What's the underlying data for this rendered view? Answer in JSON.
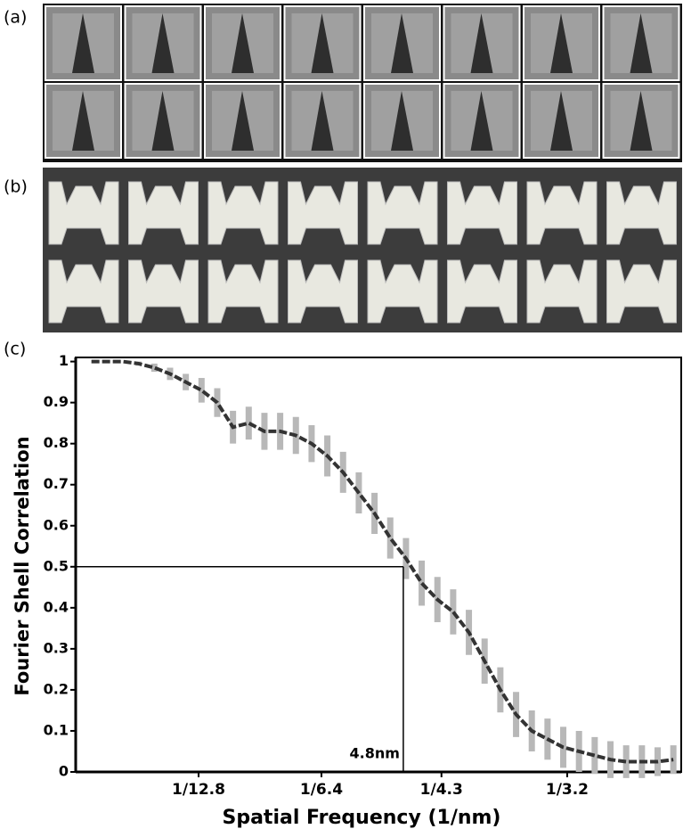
{
  "panel_labels": [
    "(a)",
    "(b)",
    "(c)"
  ],
  "chart_data": {
    "type": "errorline",
    "x_label": "Spatial Frequency (1/nm)",
    "y_label": "Fourier Shell Correlation",
    "x": [
      0.01,
      0.02,
      0.03,
      0.04,
      0.05,
      0.06,
      0.07,
      0.08,
      0.09,
      0.1,
      0.11,
      0.12,
      0.13,
      0.14,
      0.15,
      0.16,
      0.17,
      0.18,
      0.19,
      0.2,
      0.21,
      0.22,
      0.23,
      0.24,
      0.25,
      0.26,
      0.27,
      0.28,
      0.29,
      0.3,
      0.31,
      0.32,
      0.33,
      0.34,
      0.35,
      0.36,
      0.37,
      0.38
    ],
    "series": [
      {
        "color": "#333333",
        "error_color": "#b8b8b8",
        "values": [
          1.0,
          1.0,
          1.0,
          0.995,
          0.985,
          0.97,
          0.95,
          0.93,
          0.9,
          0.84,
          0.85,
          0.83,
          0.83,
          0.82,
          0.8,
          0.77,
          0.73,
          0.68,
          0.63,
          0.57,
          0.52,
          0.46,
          0.42,
          0.39,
          0.34,
          0.27,
          0.2,
          0.14,
          0.1,
          0.08,
          0.06,
          0.05,
          0.04,
          0.03,
          0.025,
          0.025,
          0.025,
          0.03
        ],
        "errors": [
          0,
          0,
          0,
          0.005,
          0.01,
          0.015,
          0.02,
          0.03,
          0.035,
          0.04,
          0.04,
          0.045,
          0.045,
          0.045,
          0.045,
          0.05,
          0.05,
          0.05,
          0.05,
          0.05,
          0.05,
          0.055,
          0.055,
          0.055,
          0.055,
          0.055,
          0.055,
          0.055,
          0.05,
          0.05,
          0.05,
          0.05,
          0.045,
          0.045,
          0.04,
          0.04,
          0.035,
          0.035
        ]
      }
    ],
    "threshold": {
      "x": 0.2083,
      "y": 0.5,
      "label": "4.8nm"
    },
    "xlim": [
      0,
      0.385
    ],
    "ylim": [
      0,
      1.01
    ],
    "xticks": [
      {
        "value": 0.078125,
        "label": "1/12.8"
      },
      {
        "value": 0.15625,
        "label": "1/6.4"
      },
      {
        "value": 0.23256,
        "label": "1/4.3"
      },
      {
        "value": 0.3125,
        "label": "1/3.2"
      }
    ],
    "yticks": [
      0,
      0.1,
      0.2,
      0.3,
      0.4,
      0.5,
      0.6,
      0.7,
      0.8,
      0.9,
      1
    ]
  }
}
